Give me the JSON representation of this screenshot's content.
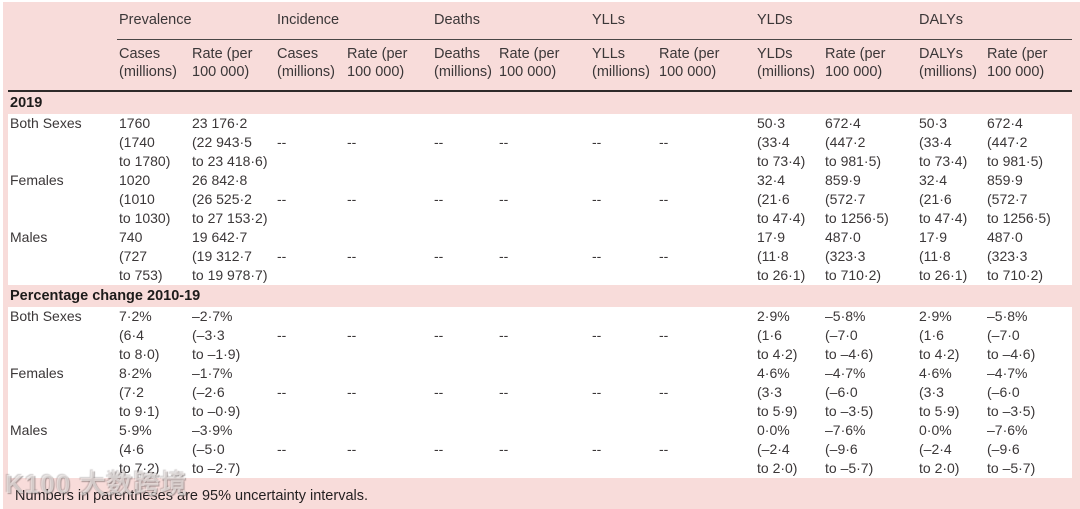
{
  "colors": {
    "panel_pink": "#f8dcda",
    "row_white": "#ffffff",
    "text": "#3b3738",
    "rule_dark": "#2e2a29"
  },
  "watermark_text": "K100 大数跨境",
  "table": {
    "groups": [
      {
        "label": "Prevalence",
        "sub": [
          "Cases\n(millions)",
          "Rate (per\n100 000)"
        ]
      },
      {
        "label": "Incidence",
        "sub": [
          "Cases\n(millions)",
          "Rate (per\n100 000)"
        ]
      },
      {
        "label": "Deaths",
        "sub": [
          "Deaths\n(millions)",
          "Rate (per\n100 000)"
        ]
      },
      {
        "label": "YLLs",
        "sub": [
          "YLLs\n(millions)",
          "Rate (per\n100 000)"
        ]
      },
      {
        "label": "YLDs",
        "sub": [
          "YLDs\n(millions)",
          "Rate (per\n100 000)"
        ]
      },
      {
        "label": "DALYs",
        "sub": [
          "DALYs\n(millions)",
          "Rate (per\n100 000)"
        ]
      }
    ],
    "sections": [
      {
        "title": "2019",
        "rows": [
          {
            "label": "Both Sexes",
            "cells": [
              "1760\n(1740\nto 1780)",
              "23 176·2\n(22 943·5\nto 23 418·6)",
              "--",
              "--",
              "--",
              "--",
              "--",
              "--",
              "50·3\n(33·4\nto 73·4)",
              "672·4\n(447·2\nto 981·5)",
              "50·3\n(33·4\nto 73·4)",
              "672·4\n(447·2\nto 981·5)"
            ]
          },
          {
            "label": "Females",
            "cells": [
              "1020\n(1010\nto 1030)",
              "26 842·8\n(26 525·2\nto 27 153·2)",
              "--",
              "--",
              "--",
              "--",
              "--",
              "--",
              "32·4\n(21·6\nto 47·4)",
              "859·9\n(572·7\nto 1256·5)",
              "32·4\n(21·6\nto 47·4)",
              "859·9\n(572·7\nto 1256·5)"
            ]
          },
          {
            "label": "Males",
            "cells": [
              "740\n(727\nto 753)",
              "19 642·7\n(19 312·7\nto 19 978·7)",
              "--",
              "--",
              "--",
              "--",
              "--",
              "--",
              "17·9\n(11·8\nto 26·1)",
              "487·0\n(323·3\nto 710·2)",
              "17·9\n(11·8\nto 26·1)",
              "487·0\n(323·3\nto 710·2)"
            ]
          }
        ]
      },
      {
        "title": "Percentage change 2010-19",
        "rows": [
          {
            "label": "Both Sexes",
            "cells": [
              "7·2%\n(6·4\nto 8·0)",
              "–2·7%\n(–3·3\nto –1·9)",
              "--",
              "--",
              "--",
              "--",
              "--",
              "--",
              "2·9%\n(1·6\nto 4·2)",
              "–5·8%\n(–7·0\nto –4·6)",
              "2·9%\n(1·6\nto 4·2)",
              "–5·8%\n(–7·0\nto –4·6)"
            ]
          },
          {
            "label": "Females",
            "cells": [
              "8·2%\n(7·2\nto 9·1)",
              "–1·7%\n(–2·6\nto –0·9)",
              "--",
              "--",
              "--",
              "--",
              "--",
              "--",
              "4·6%\n(3·3\nto 5·9)",
              "–4·7%\n(–6·0\nto –3·5)",
              "4·6%\n(3·3\nto 5·9)",
              "–4·7%\n(–6·0\nto –3·5)"
            ]
          },
          {
            "label": "Males",
            "cells": [
              "5·9%\n(4·6\nto 7·2)",
              "–3·9%\n(–5·0\nto –2·7)",
              "--",
              "--",
              "--",
              "--",
              "--",
              "--",
              "0·0%\n(–2·4\nto 2·0)",
              "–7·6%\n(–9·6\nto –5·7)",
              "0·0%\n(–2·4\nto 2·0)",
              "–7·6%\n(–9·6\nto –5·7)"
            ]
          }
        ]
      }
    ],
    "footnote": "Numbers in parentheses are 95% uncertainty intervals."
  }
}
